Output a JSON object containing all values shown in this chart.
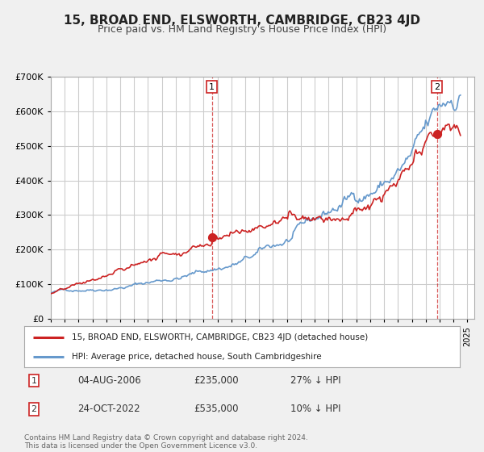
{
  "title": "15, BROAD END, ELSWORTH, CAMBRIDGE, CB23 4JD",
  "subtitle": "Price paid vs. HM Land Registry's House Price Index (HPI)",
  "title_fontsize": 11,
  "subtitle_fontsize": 9,
  "red_color": "#cc2222",
  "blue_color": "#6699cc",
  "background_color": "#f0f0f0",
  "plot_bg_color": "#ffffff",
  "grid_color": "#cccccc",
  "ylim": [
    0,
    700000
  ],
  "yticks": [
    0,
    100000,
    200000,
    300000,
    400000,
    500000,
    600000,
    700000
  ],
  "ytick_labels": [
    "£0",
    "£100K",
    "£200K",
    "£300K",
    "£400K",
    "£500K",
    "£600K",
    "£700K"
  ],
  "sale1_date": "04-AUG-2006",
  "sale1_price": 235000,
  "sale1_x": 2006.59,
  "sale2_date": "24-OCT-2022",
  "sale2_price": 535000,
  "sale2_x": 2022.8,
  "sale1_pct": "27% ↓ HPI",
  "sale2_pct": "10% ↓ HPI",
  "legend_line1": "15, BROAD END, ELSWORTH, CAMBRIDGE, CB23 4JD (detached house)",
  "legend_line2": "HPI: Average price, detached house, South Cambridgeshire",
  "footer_line1": "Contains HM Land Registry data © Crown copyright and database right 2024.",
  "footer_line2": "This data is licensed under the Open Government Licence v3.0.",
  "xmin": 1995,
  "xmax": 2025.5
}
